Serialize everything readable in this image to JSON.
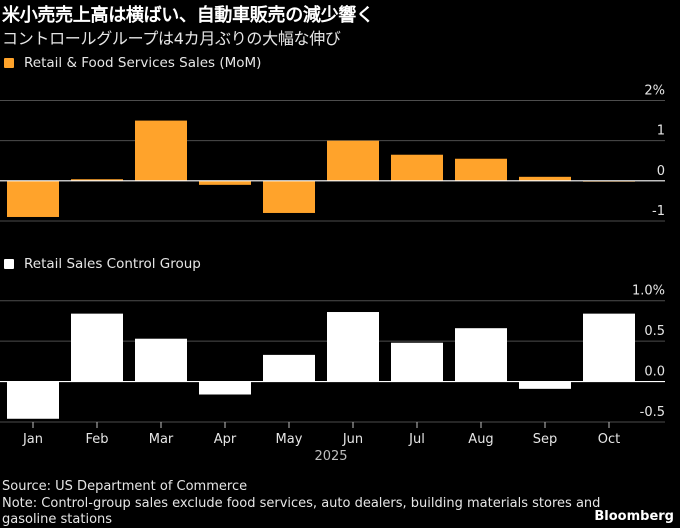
{
  "header": {
    "title": "米小売売上高は横ばい、自動車販売の減少響く",
    "subtitle": "コントロールグループは4カ月ぶりの大幅な伸び"
  },
  "colors": {
    "background": "#000000",
    "series_top": "#FFA32B",
    "series_bottom": "#FFFFFF",
    "grid": "#4d4d4d",
    "zero": "#ffffff"
  },
  "chart_data": [
    {
      "type": "bar",
      "title": "Retail & Food Services Sales (MoM)",
      "legend": "Retail & Food Services Sales (MoM)",
      "categories": [
        "Jan",
        "Feb",
        "Mar",
        "Apr",
        "May",
        "Jun",
        "Jul",
        "Aug",
        "Sep",
        "Oct"
      ],
      "values": [
        -0.9,
        0.04,
        1.5,
        -0.1,
        -0.8,
        1.0,
        0.65,
        0.55,
        0.1,
        0.0
      ],
      "ylim": [
        -1,
        2
      ],
      "yticks": [
        2,
        1,
        0,
        -1
      ],
      "ytick_labels": [
        "2%",
        "1",
        "0",
        "-1"
      ],
      "grid": true,
      "legend_position": "top-left"
    },
    {
      "type": "bar",
      "title": "Retail Sales Control Group",
      "legend": "Retail Sales Control Group",
      "categories": [
        "Jan",
        "Feb",
        "Mar",
        "Apr",
        "May",
        "Jun",
        "Jul",
        "Aug",
        "Sep",
        "Oct"
      ],
      "values": [
        -0.46,
        0.84,
        0.53,
        -0.16,
        0.33,
        0.86,
        0.48,
        0.66,
        -0.09,
        0.84
      ],
      "ylim": [
        -0.5,
        1.0
      ],
      "yticks": [
        1.0,
        0.5,
        0.0,
        -0.5
      ],
      "ytick_labels": [
        "1.0%",
        "0.5",
        "0.0",
        "-0.5"
      ],
      "grid": true,
      "legend_position": "top-left",
      "xlabel": "2025"
    }
  ],
  "footer": {
    "source": "Source: US Department of Commerce",
    "note_line1": "Note: Control-group sales exclude food services, auto dealers, building materials stores and",
    "note_line2": "gasoline stations",
    "brand": "Bloomberg"
  }
}
